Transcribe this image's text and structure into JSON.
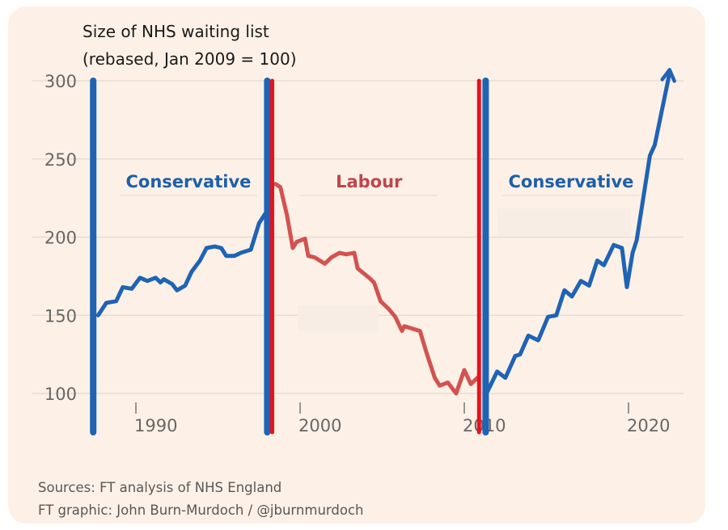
{
  "chart_data": {
    "type": "line",
    "title": "Size of NHS waiting list",
    "subtitle": "(rebased, Jan 2009 = 100)",
    "ylim": [
      100,
      300
    ],
    "yticks": [
      100,
      150,
      200,
      250,
      300
    ],
    "xticks": [
      1990,
      2000,
      2010,
      2020
    ],
    "grid": true,
    "colors": {
      "conservative": "#1f63b5",
      "labour": "#d4524f",
      "labour_divider": "#e8121c",
      "grid": "#e6ddd4",
      "tick_label": "#6a6664"
    },
    "annotations": [
      {
        "label": "Conservative",
        "x": 1993.2,
        "party": "conservative"
      },
      {
        "label": "Labour",
        "x": 2004.2,
        "party": "labour"
      },
      {
        "label": "Conservative",
        "x": 2016.5,
        "party": "conservative"
      }
    ],
    "government_lines": [
      {
        "x": 1987.4,
        "party": "conservative"
      },
      {
        "x": 1998.0,
        "party": "conservative"
      },
      {
        "x": 1998.3,
        "party": "labour"
      },
      {
        "x": 2010.9,
        "party": "labour"
      },
      {
        "x": 2011.3,
        "party": "conservative"
      }
    ],
    "series": [
      {
        "party": "conservative",
        "x": [
          1987.7,
          1988.2,
          1988.8,
          1989.2,
          1989.75,
          1990.25,
          1990.7,
          1991.2,
          1991.5,
          1991.7,
          1992.2,
          1992.5,
          1993.0,
          1993.4,
          1993.9,
          1994.3,
          1994.8,
          1995.2,
          1995.5,
          1996.0,
          1996.4,
          1997.0,
          1997.5,
          1998.0,
          1998.2
        ],
        "y": [
          150,
          158,
          159,
          168,
          167,
          174,
          172,
          174,
          171,
          173,
          170,
          166,
          169,
          178,
          185,
          193,
          194,
          193,
          188,
          188,
          190,
          192,
          209,
          217,
          225
        ]
      },
      {
        "party": "labour",
        "x": [
          1998.5,
          1998.8,
          1999.2,
          1999.55,
          1999.8,
          2000.3,
          2000.5,
          2000.9,
          2001.5,
          2001.9,
          2002.4,
          2002.8,
          2003.3,
          2003.5,
          2004.2,
          2004.5,
          2004.9,
          2005.4,
          2005.8,
          2006.2,
          2006.35,
          2007.3,
          2007.7,
          2008.2,
          2008.5,
          2009.0,
          2009.5,
          2010.0,
          2010.4,
          2010.8
        ],
        "y": [
          234,
          232,
          214,
          193,
          197,
          199,
          188,
          187,
          183,
          187,
          190,
          189,
          190,
          180,
          174,
          171,
          159,
          154,
          149,
          140,
          143,
          140,
          126,
          110,
          105,
          107,
          100,
          115,
          106,
          110
        ]
      },
      {
        "party": "conservative",
        "x": [
          2011.4,
          2012.0,
          2012.5,
          2013.1,
          2013.4,
          2013.9,
          2014.5,
          2015.1,
          2015.6,
          2016.1,
          2016.55,
          2017.1,
          2017.6,
          2018.1,
          2018.5,
          2019.1,
          2019.6,
          2019.9,
          2020.25,
          2020.5,
          2021.3,
          2021.6,
          2022.5
        ],
        "y": [
          101,
          114,
          110,
          124,
          125,
          137,
          134,
          149,
          150,
          166,
          162,
          172,
          169,
          185,
          182,
          195,
          193,
          168,
          190,
          198,
          252,
          259,
          305
        ]
      }
    ]
  },
  "sources": {
    "line1": "Sources: FT analysis of NHS England",
    "line2": "FT graphic: John Burn-Murdoch / @jburnmurdoch"
  }
}
